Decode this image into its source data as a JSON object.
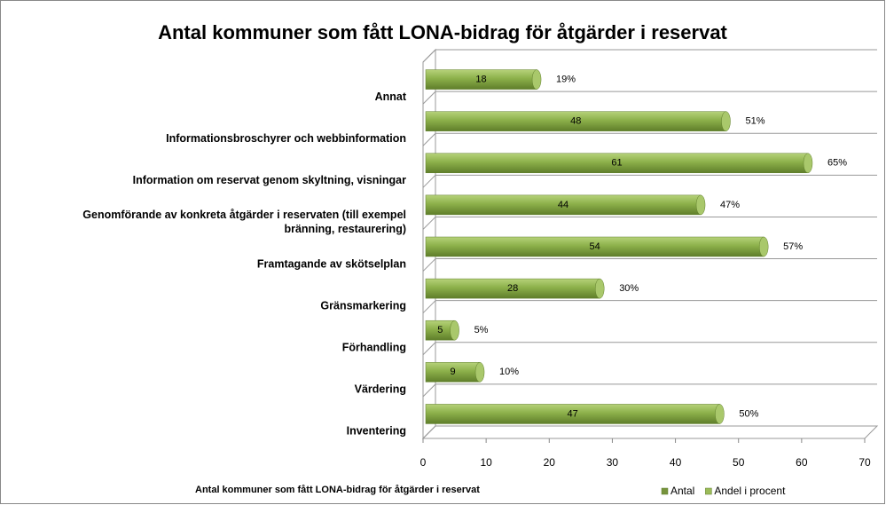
{
  "chart_data": {
    "type": "bar",
    "orientation": "horizontal",
    "title": "Antal kommuner som fått LONA-bidrag för åtgärder i reservat",
    "x_label": "Antal kommuner som fått LONA-bidrag för åtgärder i reservat",
    "categories": [
      "Annat",
      "Informationsbroschyrer och webbinformation",
      "Information om reservat genom skyltning, visningar",
      "Genomförande av konkreta åtgärder i reservaten (till exempel bränning, restaurering)",
      "Framtagande av skötselplan",
      "Gränsmarkering",
      "Förhandling",
      "Värdering",
      "Inventering"
    ],
    "series": [
      {
        "name": "Antal",
        "color": "#77933c",
        "values": [
          18,
          48,
          61,
          44,
          54,
          28,
          5,
          9,
          47
        ]
      },
      {
        "name": "Andel i procent",
        "color": "#9bbb59",
        "values": [
          19,
          51,
          65,
          47,
          57,
          30,
          5,
          10,
          50
        ],
        "value_labels": [
          "19%",
          "51%",
          "65%",
          "47%",
          "57%",
          "30%",
          "5%",
          "10%",
          "50%"
        ]
      }
    ],
    "xlim": [
      0,
      70
    ],
    "xticks": [
      0,
      10,
      20,
      30,
      40,
      50,
      60,
      70
    ],
    "legend": "bottom-right"
  }
}
